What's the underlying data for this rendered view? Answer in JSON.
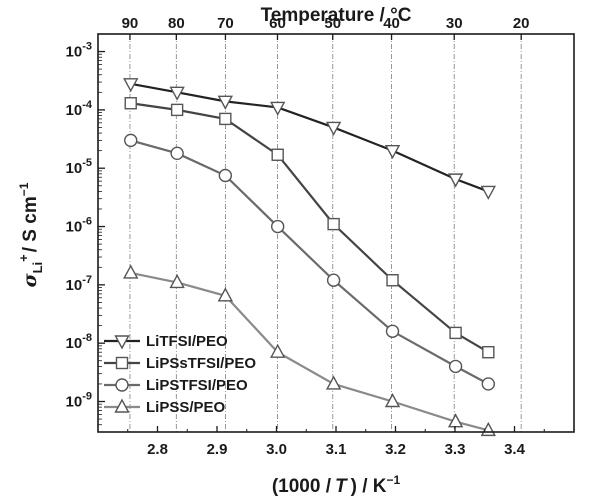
{
  "chart_data": {
    "type": "line",
    "x_axis": {
      "label_prefix": "(1000 /",
      "label_var": "T",
      "label_suffix": ") / K",
      "label_sup": "−1",
      "range": [
        2.7,
        3.5
      ],
      "ticks": [
        2.8,
        2.9,
        3.0,
        3.1,
        3.2,
        3.3,
        3.4
      ],
      "tick_labels": [
        "2.8",
        "2.9",
        "3.0",
        "3.1",
        "3.2",
        "3.3",
        "3.4"
      ]
    },
    "top_axis": {
      "label": "Temperature / °C",
      "ticks": [
        90,
        80,
        70,
        60,
        50,
        40,
        30,
        20
      ],
      "tick_labels": [
        "90",
        "80",
        "70",
        "60",
        "50",
        "40",
        "30",
        "20"
      ]
    },
    "y_axis": {
      "label_symbol": "σ",
      "label_sub": "Li",
      "label_sup": "+",
      "label_rest": "/ S cm",
      "label_sup2": "−1",
      "scale": "log",
      "range": [
        3e-10,
        0.002
      ],
      "ticks": [
        1e-09,
        1e-08,
        1e-07,
        1e-06,
        1e-05,
        0.0001,
        0.001
      ],
      "tick_exponents": [
        "-9",
        "-8",
        "-7",
        "-6",
        "-5",
        "-4",
        "-3"
      ],
      "tick_base": "10"
    },
    "grid": "vertical dash-dot lines at top-axis temperatures",
    "legend_position": "bottom-left",
    "series": [
      {
        "name": "LiTFSI/PEO",
        "marker": "triangle-down",
        "line_color": "#222222",
        "x": [
          2.755,
          2.833,
          2.914,
          3.002,
          3.096,
          3.195,
          3.301,
          3.356
        ],
        "y": [
          0.00028,
          0.0002,
          0.00014,
          0.00011,
          5e-05,
          2e-05,
          6.5e-06,
          4e-06
        ]
      },
      {
        "name": "LiPSsTFSI/PEO",
        "marker": "square",
        "line_color": "#444444",
        "x": [
          2.755,
          2.833,
          2.914,
          3.002,
          3.096,
          3.195,
          3.301,
          3.356
        ],
        "y": [
          0.00013,
          0.0001,
          7e-05,
          1.7e-05,
          1.1e-06,
          1.2e-07,
          1.5e-08,
          7e-09
        ]
      },
      {
        "name": "LiPSTFSI/PEO",
        "marker": "circle",
        "line_color": "#6a6a6a",
        "x": [
          2.755,
          2.833,
          2.914,
          3.002,
          3.096,
          3.195,
          3.301,
          3.356
        ],
        "y": [
          3e-05,
          1.8e-05,
          7.5e-06,
          1e-06,
          1.2e-07,
          1.6e-08,
          4e-09,
          2e-09
        ]
      },
      {
        "name": "LiPSS/PEO",
        "marker": "triangle-up",
        "line_color": "#8a8a8a",
        "x": [
          2.755,
          2.833,
          2.914,
          3.002,
          3.096,
          3.195,
          3.301,
          3.356
        ],
        "y": [
          1.6e-07,
          1.1e-07,
          6.5e-08,
          7e-09,
          2e-09,
          1e-09,
          4.5e-10,
          3.2e-10
        ]
      }
    ]
  }
}
